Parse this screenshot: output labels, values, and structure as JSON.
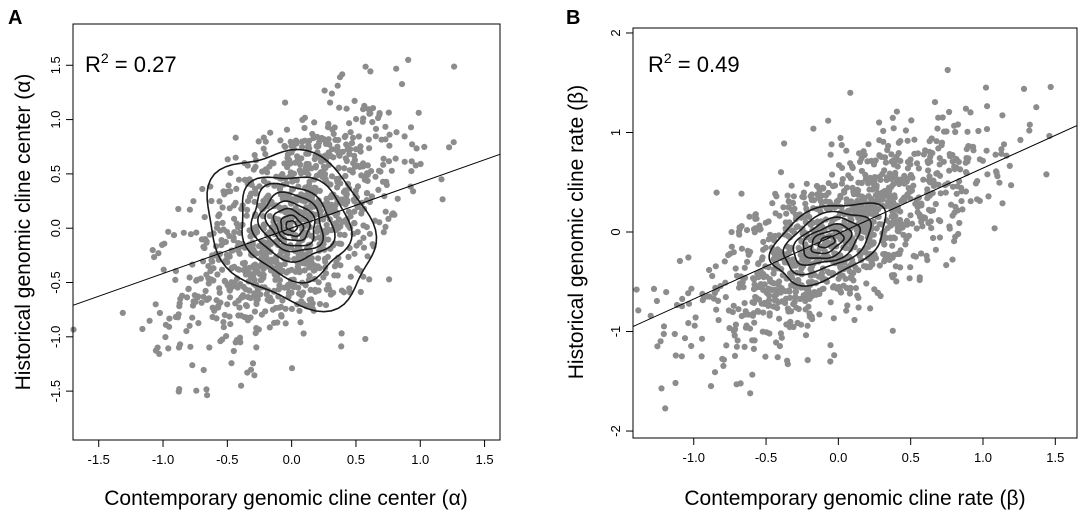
{
  "chart_data": [
    {
      "type": "scatter",
      "panel_label": "A",
      "annotation": {
        "r2_prefix": "R",
        "r2_sup": "2",
        "r2_value": " = 0.27"
      },
      "xlabel": "Contemporary genomic cline center (α)",
      "ylabel": "Historical genomic cline center (α)",
      "xlim": [
        -1.7,
        1.62
      ],
      "ylim": [
        -1.95,
        1.88
      ],
      "xticks": [
        -1.5,
        -1.0,
        -0.5,
        0.0,
        0.5,
        1.0,
        1.5
      ],
      "xtick_labels": [
        "-1.5",
        "-1.0",
        "-0.5",
        "0.0",
        "0.5",
        "1.0",
        "1.5"
      ],
      "yticks": [
        -1.5,
        -1.0,
        -0.5,
        0.0,
        0.5,
        1.0,
        1.5
      ],
      "ytick_labels": [
        "-1.5",
        "-1.0",
        "-0.5",
        "0.0",
        "0.5",
        "1.0",
        "1.5"
      ],
      "point_color": "#8c8c8c",
      "point_spread": {
        "x_mean": 0.0,
        "y_mean": 0.0,
        "x_sd": 0.42,
        "y_sd": 0.55,
        "correlation": 0.52,
        "n": 1100
      },
      "regression_line": {
        "x": [
          -1.7,
          1.62
        ],
        "y": [
          -0.71,
          0.68
        ]
      },
      "contour_levels": [
        {
          "cx": 0.0,
          "cy": 0.0,
          "rx": 0.6,
          "ry": 0.75,
          "angle_deg": 55
        },
        {
          "cx": 0.02,
          "cy": 0.02,
          "rx": 0.42,
          "ry": 0.48,
          "angle_deg": 55
        },
        {
          "cx": 0.0,
          "cy": 0.05,
          "rx": 0.3,
          "ry": 0.36,
          "angle_deg": 55
        },
        {
          "cx": 0.0,
          "cy": 0.05,
          "rx": 0.23,
          "ry": 0.28,
          "angle_deg": 55
        },
        {
          "cx": 0.0,
          "cy": 0.04,
          "rx": 0.17,
          "ry": 0.22,
          "angle_deg": 55
        },
        {
          "cx": 0.0,
          "cy": 0.03,
          "rx": 0.12,
          "ry": 0.16,
          "angle_deg": 55
        },
        {
          "cx": 0.0,
          "cy": 0.02,
          "rx": 0.08,
          "ry": 0.1,
          "angle_deg": 55
        },
        {
          "cx": 0.0,
          "cy": 0.02,
          "rx": 0.04,
          "ry": 0.05,
          "angle_deg": 55
        }
      ]
    },
    {
      "type": "scatter",
      "panel_label": "B",
      "annotation": {
        "r2_prefix": "R",
        "r2_sup": "2",
        "r2_value": " = 0.49"
      },
      "xlabel": "Contemporary genomic cline rate (β)",
      "ylabel": "Historical genomic cline rate (β)",
      "xlim": [
        -1.42,
        1.65
      ],
      "ylim": [
        -2.07,
        2.05
      ],
      "xticks": [
        -1.0,
        -0.5,
        0.0,
        0.5,
        1.0,
        1.5
      ],
      "xtick_labels": [
        "-1.0",
        "-0.5",
        "0.0",
        "0.5",
        "1.0",
        "1.5"
      ],
      "yticks": [
        -2,
        -1,
        0,
        1,
        2
      ],
      "ytick_labels": [
        "-2",
        "-1",
        "0",
        "1",
        "2"
      ],
      "point_color": "#8c8c8c",
      "point_spread": {
        "x_mean": 0.0,
        "y_mean": -0.05,
        "x_sd": 0.5,
        "y_sd": 0.55,
        "correlation": 0.7,
        "n": 1150
      },
      "regression_line": {
        "x": [
          -1.42,
          1.65
        ],
        "y": [
          -0.95,
          1.07
        ]
      },
      "contour_levels": [
        {
          "cx": -0.07,
          "cy": -0.1,
          "rx": 0.5,
          "ry": 0.28,
          "angle_deg": 25
        },
        {
          "cx": -0.08,
          "cy": -0.1,
          "rx": 0.38,
          "ry": 0.21,
          "angle_deg": 25
        },
        {
          "cx": -0.08,
          "cy": -0.1,
          "rx": 0.29,
          "ry": 0.16,
          "angle_deg": 25
        },
        {
          "cx": -0.08,
          "cy": -0.1,
          "rx": 0.21,
          "ry": 0.12,
          "angle_deg": 25
        },
        {
          "cx": -0.08,
          "cy": -0.1,
          "rx": 0.14,
          "ry": 0.08,
          "angle_deg": 25
        },
        {
          "cx": -0.08,
          "cy": -0.1,
          "rx": 0.07,
          "ry": 0.04,
          "angle_deg": 25
        }
      ]
    }
  ]
}
